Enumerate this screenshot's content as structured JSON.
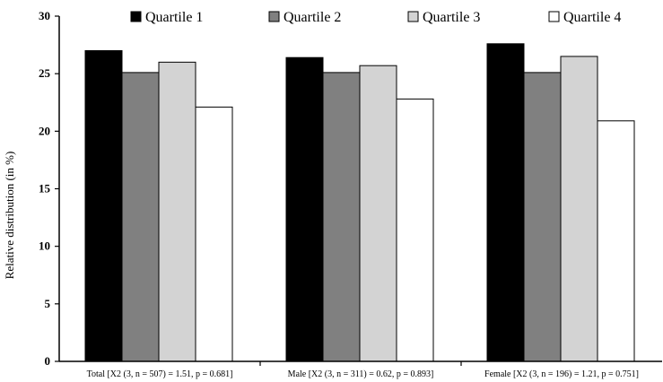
{
  "chart_data": {
    "type": "bar",
    "categories": [
      "Total [X2 (3, n = 507) = 1.51, p = 0.681]",
      "Male [X2 (3, n = 311) = 0.62, p = 0.893]",
      "Female [X2 (3, n = 196) = 1.21, p = 0.751]"
    ],
    "series": [
      {
        "name": "Quartile 1",
        "color": "#000000",
        "values": [
          27.0,
          26.4,
          27.6
        ]
      },
      {
        "name": "Quartile 2",
        "color": "#808080",
        "values": [
          25.1,
          25.1,
          25.1
        ]
      },
      {
        "name": "Quartile 3",
        "color": "#d3d3d3",
        "values": [
          26.0,
          25.7,
          26.5
        ]
      },
      {
        "name": "Quartile 4",
        "color": "#ffffff",
        "values": [
          22.1,
          22.8,
          20.9
        ]
      }
    ],
    "yticks": [
      "0",
      "5",
      "10",
      "15",
      "20",
      "25",
      "30"
    ],
    "ylim": [
      0,
      30
    ],
    "title": "",
    "xlabel": "",
    "ylabel": "Relative distribution (in %)",
    "grid": false,
    "legend_position": "top"
  }
}
